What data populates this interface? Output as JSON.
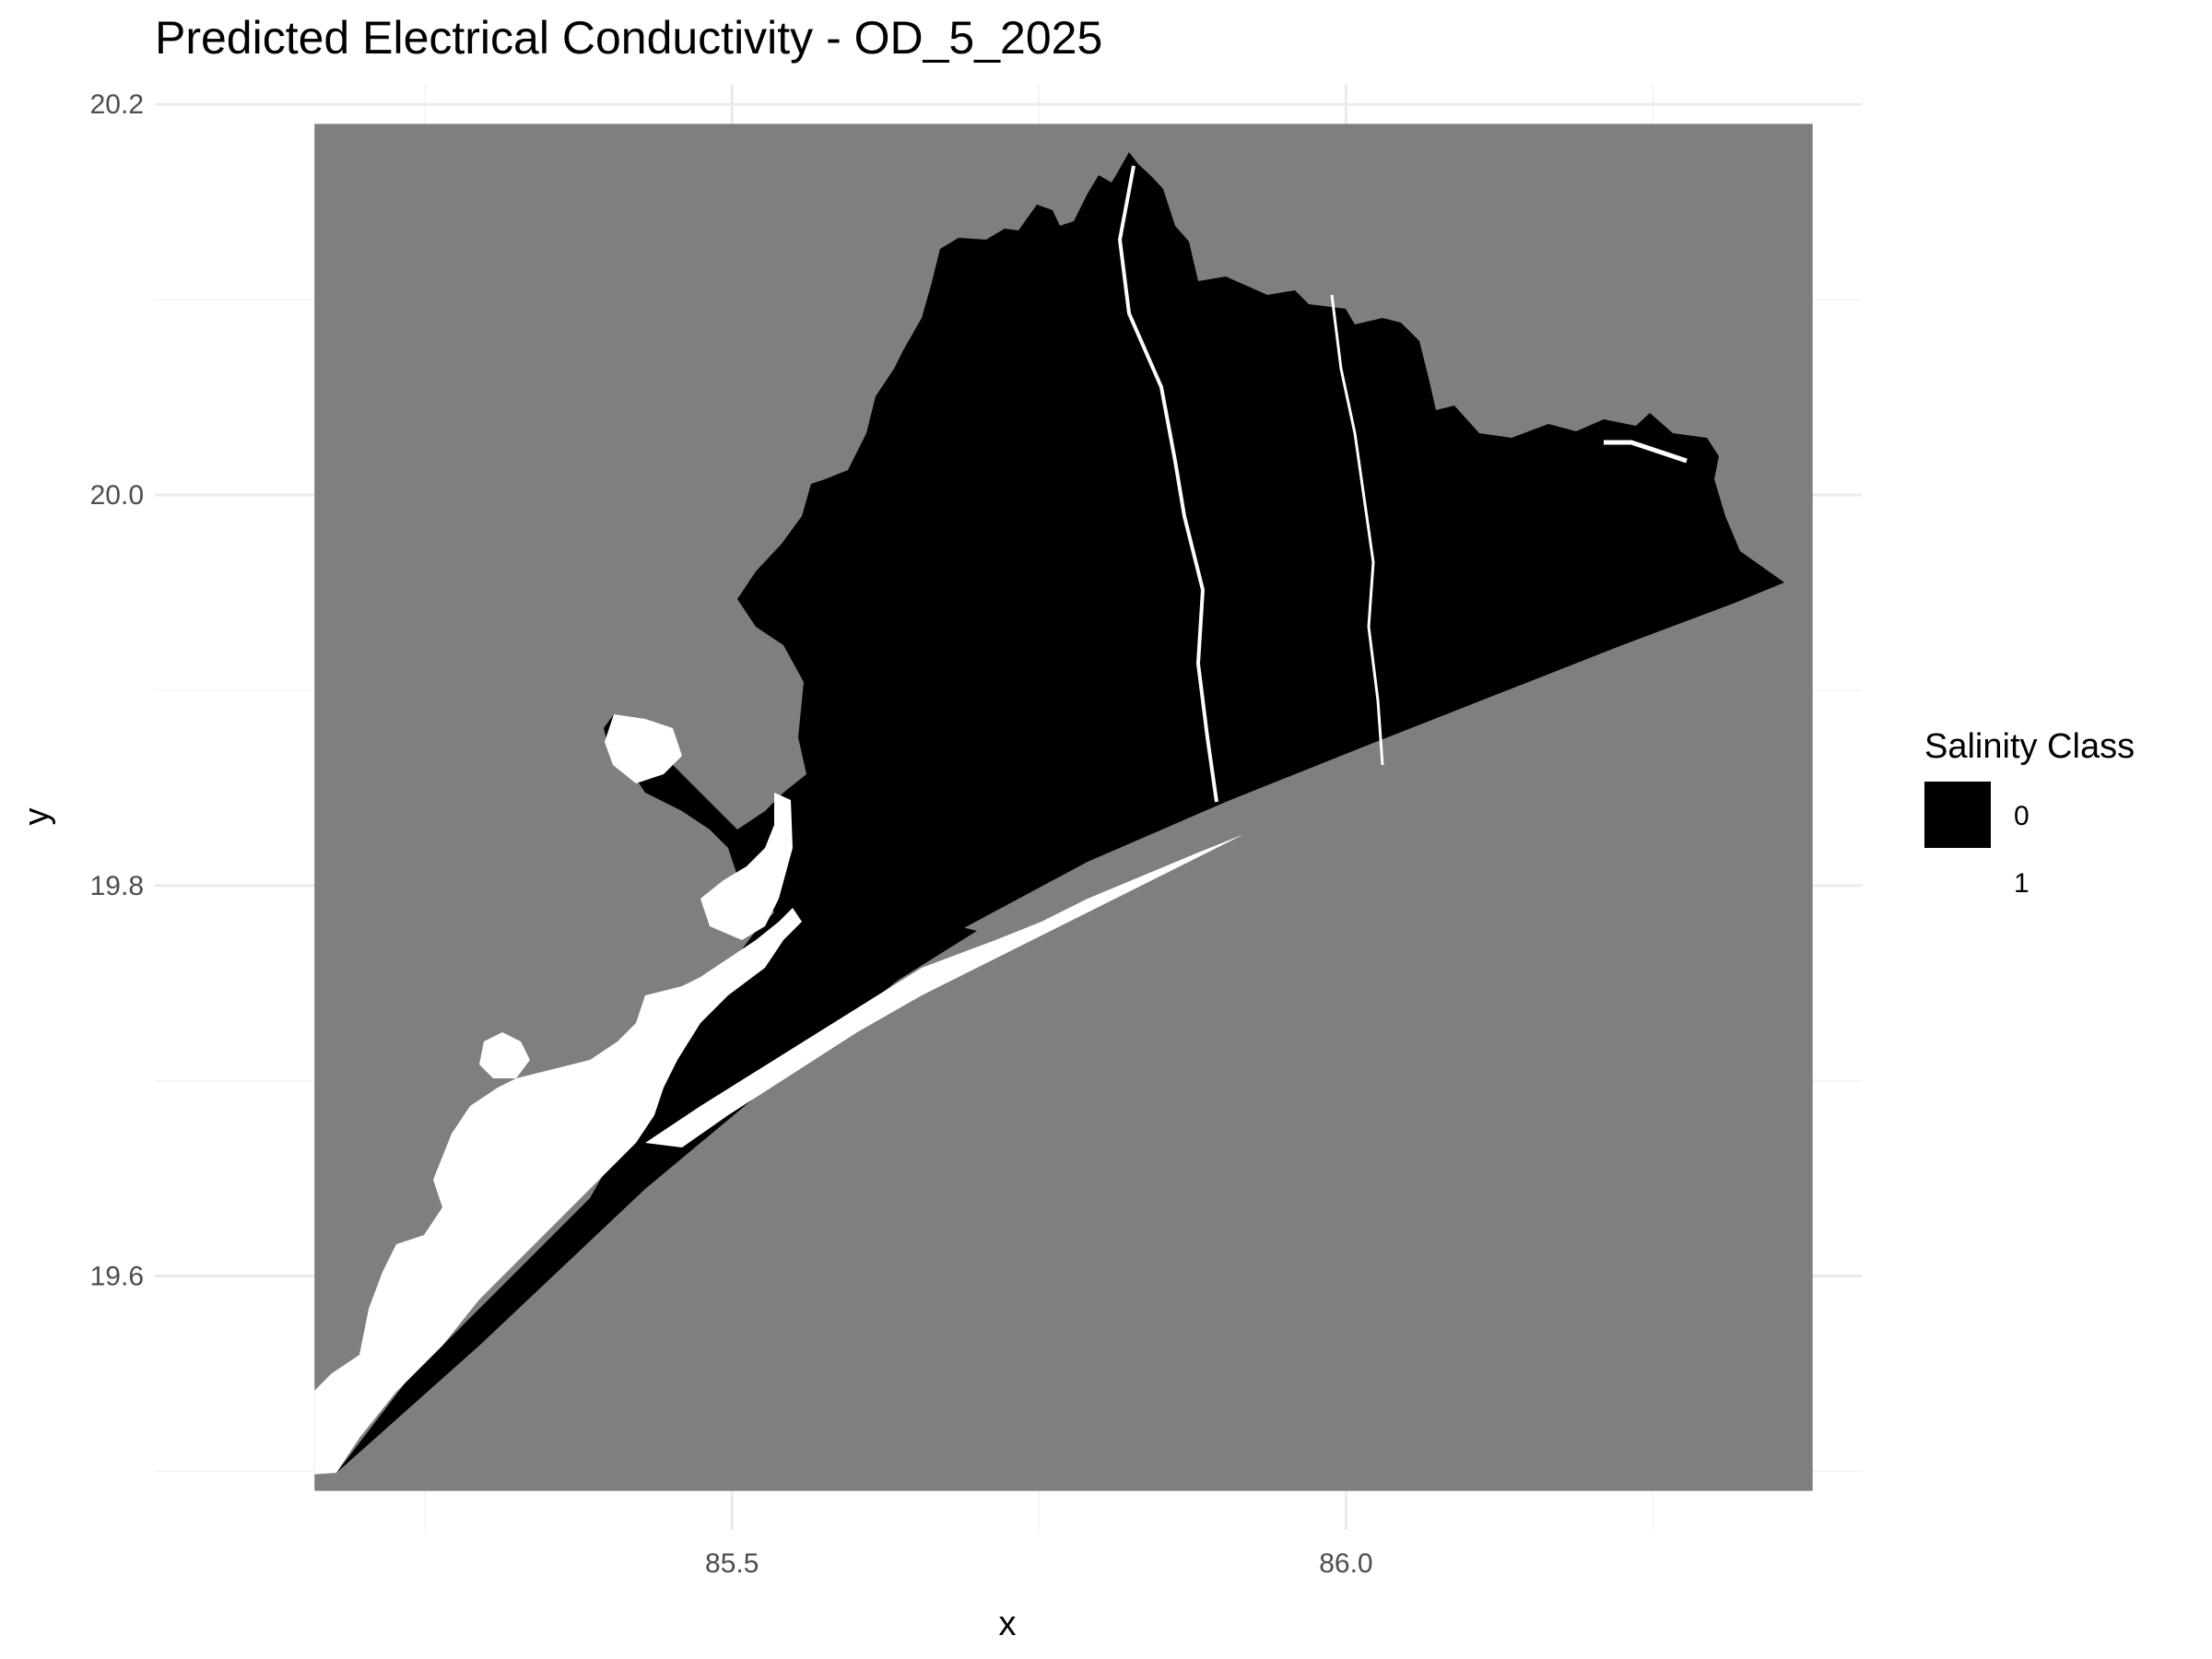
{
  "chart_data": {
    "type": "heatmap",
    "title": "Predicted Electrical Conductivity - OD_5_2025",
    "xlabel": "x",
    "ylabel": "y",
    "xlim": [
      85.03,
      86.42
    ],
    "ylim": [
      19.47,
      20.21
    ],
    "raster_extent": {
      "x": [
        85.16,
        86.38
      ],
      "y": [
        19.49,
        20.19
      ]
    },
    "x_ticks": [
      {
        "value": 85.5,
        "label": "85.5"
      },
      {
        "value": 86.0,
        "label": "86.0"
      }
    ],
    "x_minor": [
      85.25,
      85.75,
      86.25
    ],
    "y_ticks": [
      {
        "value": 19.6,
        "label": "19.6"
      },
      {
        "value": 19.8,
        "label": "19.8"
      },
      {
        "value": 20.0,
        "label": "20.0"
      },
      {
        "value": 20.2,
        "label": "20.2"
      }
    ],
    "y_minor": [
      19.5,
      19.7,
      19.9,
      20.1
    ],
    "legend": {
      "title": "Salinity Class",
      "placement": "right",
      "entries": [
        {
          "label": "0",
          "color": "#000000"
        },
        {
          "label": "1",
          "color": "#ffffff"
        }
      ]
    },
    "na_color": "#7f7f7f",
    "grid": true
  }
}
